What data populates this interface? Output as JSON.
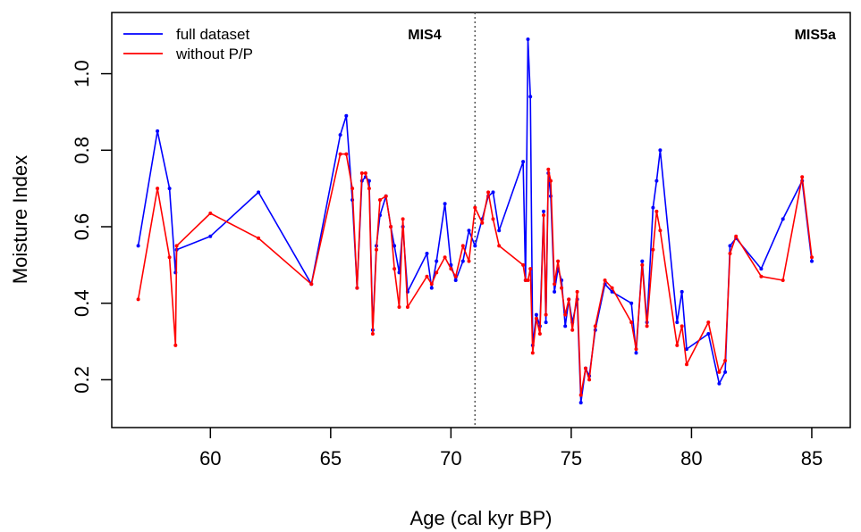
{
  "chart_data": {
    "type": "line",
    "title": "",
    "xlabel": "Age (cal kyr BP)",
    "ylabel": "Moisture Index",
    "xlim": [
      55.9,
      86.6
    ],
    "ylim": [
      0.075,
      1.16
    ],
    "x_ticks": [
      60,
      65,
      70,
      75,
      80,
      85
    ],
    "y_ticks": [
      0.2,
      0.4,
      0.6,
      0.8,
      1.0
    ],
    "x_tick_labels": [
      "60",
      "65",
      "70",
      "75",
      "80",
      "85"
    ],
    "y_tick_labels": [
      "0.2",
      "0.4",
      "0.6",
      "0.8",
      "1.0"
    ],
    "grid": false,
    "legend_position": "top-left",
    "boundary": {
      "x": 71.0,
      "style": "dotted"
    },
    "annotations": [
      {
        "text": "MIS4",
        "x": 69.6,
        "y": 1.09
      },
      {
        "text": "MIS5a",
        "x": 86.0,
        "y": 1.09
      }
    ],
    "series": [
      {
        "name": "full dataset",
        "color": "#0000ff",
        "x": [
          57.0,
          57.8,
          58.3,
          58.55,
          58.6,
          60.0,
          62.0,
          64.2,
          65.4,
          65.65,
          65.9,
          66.1,
          66.3,
          66.45,
          66.6,
          66.75,
          66.9,
          67.05,
          67.3,
          67.5,
          67.65,
          67.85,
          68.0,
          68.2,
          69.0,
          69.2,
          69.4,
          69.75,
          70.0,
          70.2,
          70.5,
          70.75,
          71.0,
          71.3,
          71.55,
          71.75,
          72.0,
          73.0,
          73.1,
          73.2,
          73.3,
          73.4,
          73.55,
          73.7,
          73.85,
          73.95,
          74.05,
          74.15,
          74.3,
          74.45,
          74.6,
          74.75,
          74.9,
          75.05,
          75.25,
          75.4,
          75.6,
          75.75,
          76.0,
          76.4,
          76.7,
          77.5,
          77.7,
          77.95,
          78.15,
          78.4,
          78.55,
          78.7,
          79.4,
          79.6,
          79.8,
          80.7,
          81.15,
          81.4,
          81.6,
          81.85,
          82.9,
          83.8,
          84.6,
          85.0
        ],
        "y": [
          0.55,
          0.85,
          0.7,
          0.48,
          0.54,
          0.575,
          0.69,
          0.45,
          0.84,
          0.89,
          0.67,
          0.44,
          0.72,
          0.73,
          0.72,
          0.33,
          0.55,
          0.63,
          0.68,
          0.6,
          0.55,
          0.48,
          0.6,
          0.43,
          0.53,
          0.44,
          0.51,
          0.66,
          0.5,
          0.46,
          0.51,
          0.59,
          0.55,
          0.62,
          0.68,
          0.69,
          0.59,
          0.77,
          0.46,
          1.09,
          0.94,
          0.29,
          0.37,
          0.34,
          0.64,
          0.35,
          0.74,
          0.68,
          0.43,
          0.49,
          0.46,
          0.34,
          0.41,
          0.35,
          0.41,
          0.14,
          0.23,
          0.21,
          0.33,
          0.45,
          0.43,
          0.4,
          0.27,
          0.51,
          0.35,
          0.65,
          0.72,
          0.8,
          0.35,
          0.43,
          0.28,
          0.32,
          0.19,
          0.22,
          0.55,
          0.57,
          0.49,
          0.62,
          0.72,
          0.51
        ]
      },
      {
        "name": "without P/P",
        "color": "#ff0000",
        "x": [
          57.0,
          57.8,
          58.3,
          58.55,
          58.6,
          60.0,
          62.0,
          64.2,
          65.4,
          65.65,
          65.9,
          66.1,
          66.3,
          66.45,
          66.6,
          66.75,
          66.9,
          67.05,
          67.3,
          67.5,
          67.65,
          67.85,
          68.0,
          68.2,
          69.0,
          69.2,
          69.4,
          69.75,
          70.0,
          70.2,
          70.5,
          70.75,
          71.0,
          71.3,
          71.55,
          71.75,
          72.0,
          73.0,
          73.1,
          73.2,
          73.3,
          73.4,
          73.55,
          73.7,
          73.85,
          73.95,
          74.05,
          74.15,
          74.3,
          74.45,
          74.6,
          74.75,
          74.9,
          75.05,
          75.25,
          75.4,
          75.6,
          75.75,
          76.0,
          76.4,
          76.7,
          77.5,
          77.7,
          77.95,
          78.15,
          78.4,
          78.55,
          78.7,
          79.4,
          79.6,
          79.8,
          80.7,
          81.15,
          81.4,
          81.6,
          81.85,
          82.9,
          83.8,
          84.6,
          85.0
        ],
        "y": [
          0.41,
          0.7,
          0.52,
          0.29,
          0.55,
          0.635,
          0.57,
          0.45,
          0.79,
          0.79,
          0.7,
          0.44,
          0.74,
          0.74,
          0.7,
          0.32,
          0.54,
          0.67,
          0.68,
          0.6,
          0.49,
          0.39,
          0.62,
          0.39,
          0.47,
          0.45,
          0.48,
          0.52,
          0.49,
          0.47,
          0.55,
          0.51,
          0.65,
          0.61,
          0.69,
          0.62,
          0.55,
          0.5,
          0.46,
          0.46,
          0.49,
          0.27,
          0.36,
          0.32,
          0.63,
          0.37,
          0.75,
          0.72,
          0.45,
          0.51,
          0.44,
          0.37,
          0.41,
          0.33,
          0.43,
          0.16,
          0.23,
          0.2,
          0.34,
          0.46,
          0.44,
          0.35,
          0.28,
          0.5,
          0.34,
          0.54,
          0.64,
          0.59,
          0.29,
          0.34,
          0.24,
          0.35,
          0.22,
          0.25,
          0.53,
          0.575,
          0.47,
          0.46,
          0.73,
          0.52
        ]
      }
    ]
  }
}
